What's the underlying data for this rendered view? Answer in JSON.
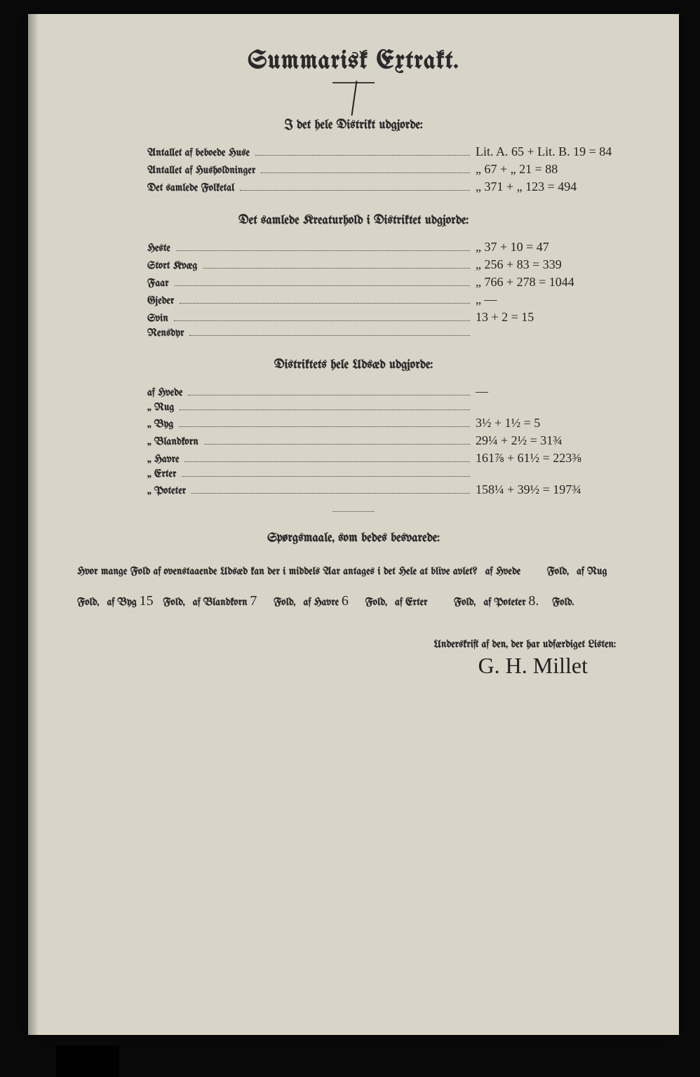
{
  "title": "Summarisk Extrakt.",
  "section1": {
    "heading": "I det hele Distrikt udgjorde:",
    "rows": [
      {
        "label": "Antallet af beboede Huse",
        "value": "Lit. A. 65 + Lit. B. 19 = 84"
      },
      {
        "label": "Antallet af Husholdninger",
        "value": "„ 67 + „ 21 = 88"
      },
      {
        "label": "Det samlede Folketal",
        "value": "„ 371 + „ 123 = 494"
      }
    ]
  },
  "section2": {
    "heading": "Det samlede Kreaturhold i Distriktet udgjorde:",
    "rows": [
      {
        "label": "Heste",
        "value": "„ 37 + 10 = 47"
      },
      {
        "label": "Stort Kvæg",
        "value": "„ 256 + 83 = 339"
      },
      {
        "label": "Faar",
        "value": "„ 766 + 278 = 1044"
      },
      {
        "label": "Gjeder",
        "value": "„ —"
      },
      {
        "label": "Svin",
        "value": "13 + 2 = 15"
      },
      {
        "label": "Rensdyr",
        "value": ""
      }
    ]
  },
  "section3": {
    "heading": "Distriktets hele Udsæd udgjorde:",
    "rows": [
      {
        "label": "af Hvede",
        "value": "—"
      },
      {
        "label": "„ Rug",
        "value": ""
      },
      {
        "label": "„ Byg",
        "value": "3½ + 1½ = 5"
      },
      {
        "label": "„ Blandkorn",
        "value": "29¼ + 2½ = 31¾"
      },
      {
        "label": "„ Havre",
        "value": "161⅞ + 61½ = 223⅜"
      },
      {
        "label": "„ Erter",
        "value": ""
      },
      {
        "label": "„ Poteter",
        "value": "158¼ + 39½ = 197¾"
      }
    ]
  },
  "questions": {
    "heading": "Spørgsmaale, som bedes besvarede:",
    "intro": "Hvor mange Fold af ovenstaaende Udsæd kan der i middels Aar antages i det Hele at blive avlet?",
    "parts": [
      {
        "label": "af Hvede",
        "value": "",
        "suffix": "Fold,"
      },
      {
        "label": "af Rug",
        "value": "",
        "suffix": "Fold,"
      },
      {
        "label": "af Byg",
        "value": "15",
        "suffix": "Fold,"
      },
      {
        "label": "af Blandkorn",
        "value": "7",
        "suffix": "Fold,"
      },
      {
        "label": "af Havre",
        "value": "6",
        "suffix": "Fold,"
      },
      {
        "label": "af Erter",
        "value": "",
        "suffix": "Fold,"
      },
      {
        "label": "af Poteter",
        "value": "8.",
        "suffix": "Fold."
      }
    ]
  },
  "signature": {
    "label": "Underskrift af den, der har udfærdiget Listen:",
    "value": "G. H. Millet"
  }
}
